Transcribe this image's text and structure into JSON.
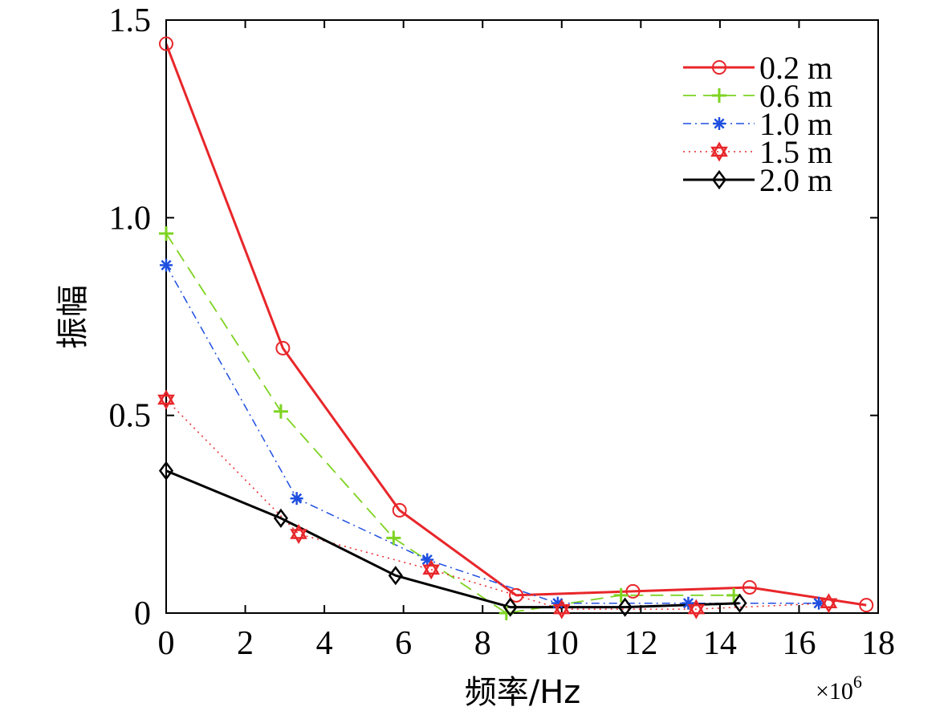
{
  "chart_data": {
    "type": "line",
    "xlabel": "频率/Hz",
    "ylabel": "振幅",
    "x_multiplier": "×10",
    "x_multiplier_exp": "6",
    "xlim": [
      0,
      18
    ],
    "ylim": [
      0,
      1.5
    ],
    "x_ticks": [
      {
        "value": 0,
        "label": "0"
      },
      {
        "value": 2,
        "label": "2"
      },
      {
        "value": 4,
        "label": "4"
      },
      {
        "value": 6,
        "label": "6"
      },
      {
        "value": 8,
        "label": "8"
      },
      {
        "value": 10,
        "label": "10"
      },
      {
        "value": 12,
        "label": "12"
      },
      {
        "value": 14,
        "label": "14"
      },
      {
        "value": 16,
        "label": "16"
      },
      {
        "value": 18,
        "label": "18"
      }
    ],
    "y_ticks": [
      {
        "value": 0,
        "label": "0"
      },
      {
        "value": 0.5,
        "label": "0.5"
      },
      {
        "value": 1.0,
        "label": "1.0"
      },
      {
        "value": 1.5,
        "label": "1.5"
      }
    ],
    "grid": false,
    "legend_position": "top-right",
    "series": [
      {
        "name": "0.2 m",
        "color": "#e8262a",
        "dash": "solid",
        "width": 3,
        "marker": "circle",
        "x": [
          0,
          2.95,
          5.9,
          8.85,
          11.8,
          14.75,
          17.7
        ],
        "y": [
          1.44,
          0.67,
          0.26,
          0.045,
          0.055,
          0.065,
          0.02
        ]
      },
      {
        "name": "0.6 m",
        "color": "#7ed321",
        "dash": "dashed",
        "width": 1.8,
        "marker": "plus",
        "x": [
          0,
          2.9,
          5.75,
          8.6,
          11.5,
          14.35
        ],
        "y": [
          0.96,
          0.51,
          0.19,
          0.0,
          0.045,
          0.045
        ]
      },
      {
        "name": "1.0 m",
        "color": "#1f4fe0",
        "dash": "dashdot",
        "width": 1.5,
        "marker": "asterisk",
        "x": [
          0,
          3.3,
          6.6,
          9.9,
          13.2,
          16.5
        ],
        "y": [
          0.88,
          0.29,
          0.135,
          0.025,
          0.025,
          0.025
        ]
      },
      {
        "name": "1.5 m",
        "color": "#e8262a",
        "dash": "dotted",
        "width": 1.5,
        "marker": "hexagram",
        "x": [
          0,
          3.35,
          6.7,
          10.0,
          13.4,
          16.75
        ],
        "y": [
          0.54,
          0.2,
          0.11,
          0.01,
          0.01,
          0.025
        ]
      },
      {
        "name": "2.0 m",
        "color": "#000000",
        "dash": "solid",
        "width": 3,
        "marker": "diamond",
        "x": [
          0,
          2.9,
          5.8,
          8.7,
          11.6,
          14.5
        ],
        "y": [
          0.36,
          0.24,
          0.095,
          0.015,
          0.015,
          0.025
        ]
      }
    ]
  }
}
